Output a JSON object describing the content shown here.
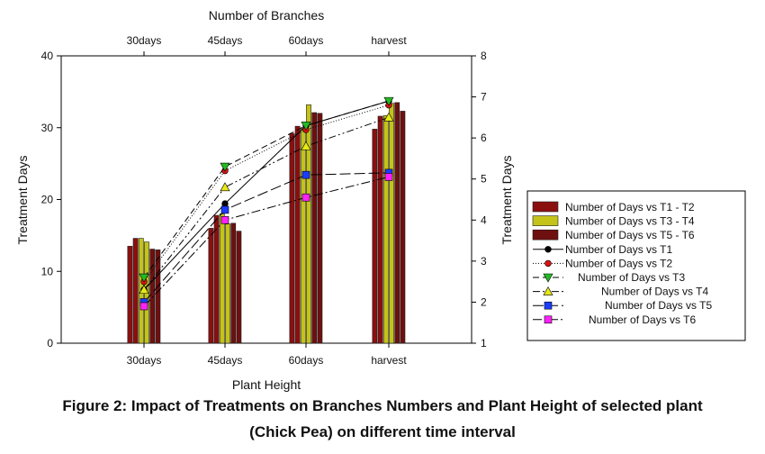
{
  "chart_data": {
    "type": "bar",
    "title": "Number of Branches",
    "xlabel": "Plant Height",
    "ylabel": "Treatment Days",
    "y2label": "Treatment Days",
    "categories": [
      "30days",
      "45days",
      "60days",
      "harvest"
    ],
    "top_categories": [
      "30days",
      "45days",
      "60days",
      "harvest"
    ],
    "ylim": [
      0,
      40
    ],
    "y_ticks": [
      0,
      10,
      20,
      30,
      40
    ],
    "y2lim": [
      1,
      8
    ],
    "y2_ticks": [
      1,
      2,
      3,
      4,
      5,
      6,
      7,
      8
    ],
    "grid": false,
    "legend_position": "right",
    "bar_series": [
      {
        "name": "Number of Days vs T1 - T2",
        "color": "#8B0F0F",
        "values": [
          [
            13.5,
            14.6
          ],
          [
            16.0,
            17.8
          ],
          [
            29.2,
            30.2
          ],
          [
            29.8,
            31.6
          ]
        ]
      },
      {
        "name": "Number of Days vs T3 - T4",
        "color": "#C3C31A",
        "values": [
          [
            14.6,
            14.1
          ],
          [
            18.0,
            16.6
          ],
          [
            30.0,
            33.2
          ],
          [
            31.7,
            33.4
          ]
        ]
      },
      {
        "name": "Number of Days vs T5 - T6",
        "color": "#6E1010",
        "values": [
          [
            13.1,
            13.0
          ],
          [
            16.7,
            15.6
          ],
          [
            32.1,
            32.0
          ],
          [
            33.5,
            32.3
          ]
        ]
      }
    ],
    "line_series": [
      {
        "name": "Number of Days vs T1",
        "marker": "circle",
        "color": "#000000",
        "dash": "",
        "values": [
          2.3,
          4.4,
          6.3,
          6.9
        ]
      },
      {
        "name": "Number of Days vs T2",
        "marker": "circle",
        "color": "#dd1111",
        "dash": "1,2",
        "values": [
          2.5,
          5.2,
          6.2,
          6.8
        ]
      },
      {
        "name": "Number of Days vs T3",
        "marker": "triangle-down",
        "color": "#22bb22",
        "dash": "7,4",
        "values": [
          2.6,
          5.3,
          6.3,
          6.9
        ]
      },
      {
        "name": "Number of Days vs T4",
        "marker": "triangle-up",
        "color": "#e8e818",
        "dash": "8,3,2,3,2,3",
        "values": [
          2.3,
          4.8,
          5.8,
          6.5
        ]
      },
      {
        "name": "Number of Days vs T5",
        "marker": "square",
        "color": "#1a3cff",
        "dash": "12,4",
        "values": [
          2.0,
          4.25,
          5.1,
          5.15
        ]
      },
      {
        "name": "Number of Days vs T6",
        "marker": "square",
        "color": "#ff22ff",
        "dash": "10,3,2,3",
        "values": [
          1.9,
          4.0,
          4.55,
          5.05
        ]
      }
    ]
  },
  "caption": {
    "line1": "Figure 2: Impact of Treatments on Branches Numbers and Plant Height of selected plant",
    "line2": "(Chick Pea) on different time interval"
  }
}
